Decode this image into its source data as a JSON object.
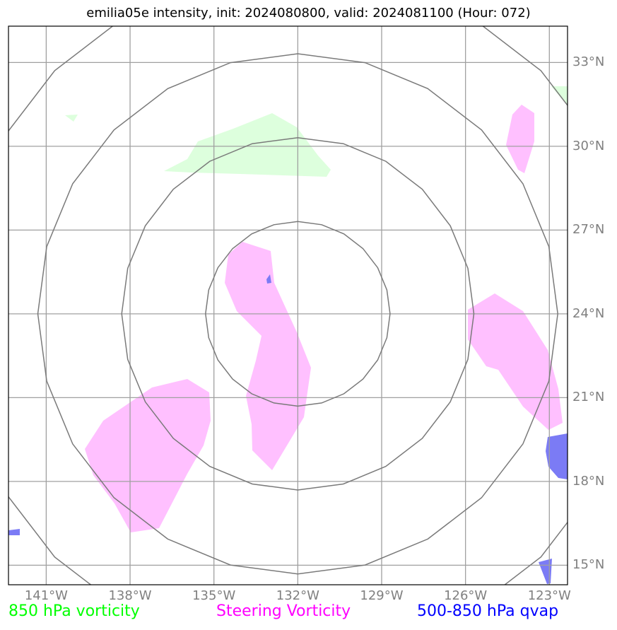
{
  "title": "emilia05e intensity, init: 2024080800, valid: 2024081100 (Hour: 072)",
  "map": {
    "lon_ticks": [
      "141°W",
      "138°W",
      "135°W",
      "132°W",
      "129°W",
      "126°W",
      "123°W"
    ],
    "lat_ticks": [
      "33°N",
      "30°N",
      "27°N",
      "24°N",
      "21°N",
      "18°N",
      "15°N"
    ],
    "lon_range": [
      -142.35,
      -122.35
    ],
    "lat_range": [
      14.3,
      34.3
    ],
    "storm_center": {
      "lon": -132.0,
      "lat": 24.0
    },
    "range_rings_deg": [
      3.3,
      6.3,
      9.3,
      12.3
    ],
    "colors": {
      "grid": "#a0a0a0",
      "rings": "#7a7a7a",
      "vorticity_850": "#ddffdd",
      "steering_vorticity": "#ffc0ff",
      "qvap_500_850": "#7b7bf5",
      "tick_labels": "#808080"
    }
  },
  "legend": {
    "vorticity_850": {
      "label": "850 hPa vorticity",
      "color": "#00ff00"
    },
    "steering_vorticity": {
      "label": "Steering Vorticity",
      "color": "#ff00ff"
    },
    "qvap": {
      "label": "500-850 hPa qvap",
      "color": "#0000ff"
    }
  }
}
